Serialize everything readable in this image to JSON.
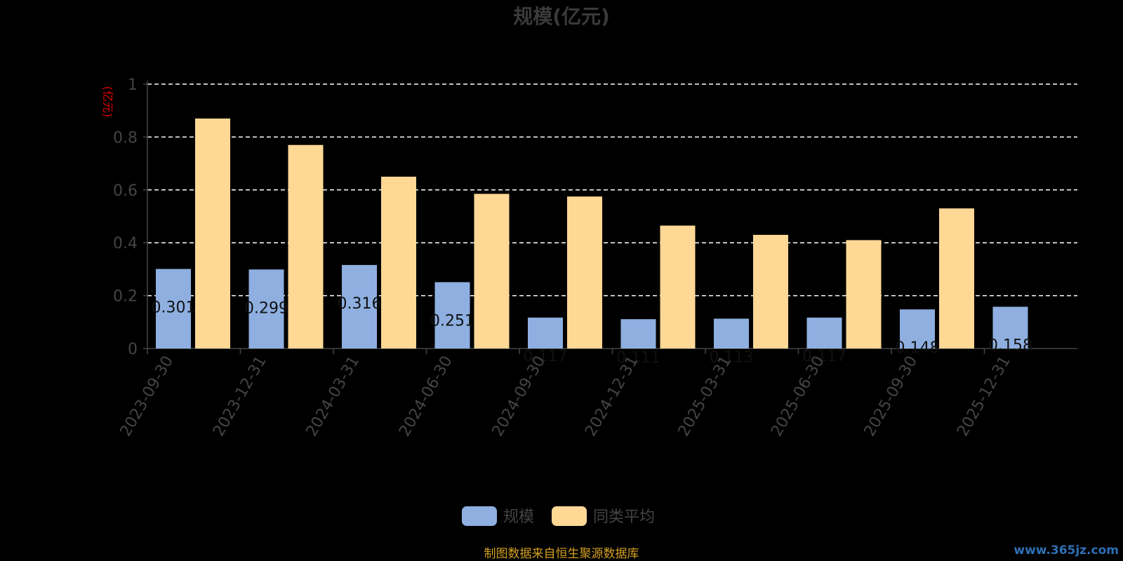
{
  "chart_data": {
    "type": "bar",
    "title": "规模(亿元)",
    "ylabel": "(亿元)",
    "ylim": [
      0,
      1
    ],
    "yticks": [
      0,
      0.2,
      0.4,
      0.6,
      0.8,
      1
    ],
    "grid": true,
    "legend_position": "bottom-center",
    "categories": [
      "2023-09-30",
      "2023-12-31",
      "2024-03-31",
      "2024-06-30",
      "2024-09-30",
      "2024-12-31",
      "2025-03-31",
      "2025-06-30",
      "2025-09-30",
      "2025-12-31"
    ],
    "series": [
      {
        "name": "规模",
        "color": "#8eafe0",
        "values": [
          0.301,
          0.299,
          0.316,
          0.251,
          0.117,
          0.111,
          0.113,
          0.117,
          0.148,
          0.158
        ],
        "labels": [
          "0.301",
          "0.299",
          "0.316",
          "0.251",
          "0.117",
          "0.111",
          "0.113",
          "0.117",
          "0.148",
          "0.158"
        ]
      },
      {
        "name": "同类平均",
        "color": "#ffd896",
        "values": [
          0.87,
          0.77,
          0.65,
          0.585,
          0.575,
          0.465,
          0.43,
          0.41,
          0.53,
          null
        ]
      }
    ]
  },
  "footer": {
    "source": "制图数据来自恒生聚源数据库",
    "watermark": "www.365jz.com"
  }
}
